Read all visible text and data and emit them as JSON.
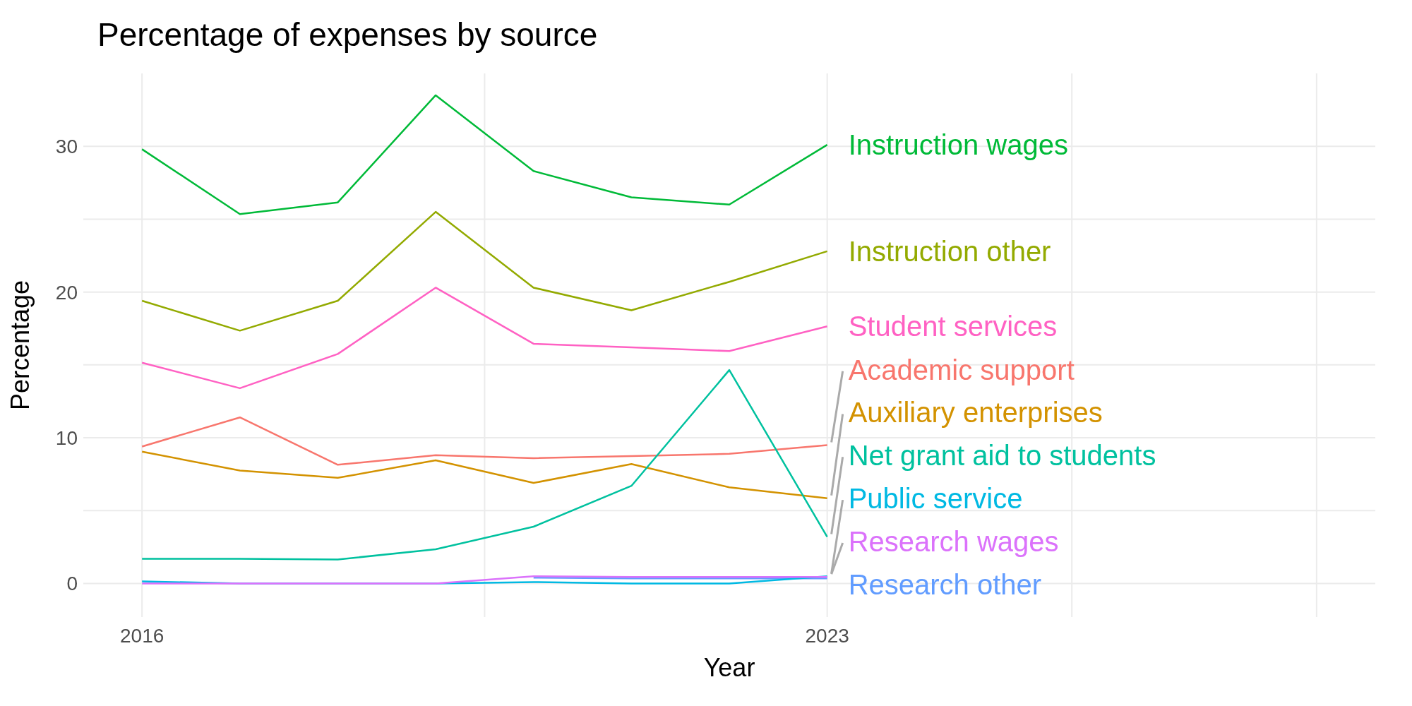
{
  "chart_data": {
    "type": "line",
    "title": "Percentage of expenses by source",
    "xlabel": "Year",
    "ylabel": "Percentage",
    "x": [
      2016,
      2017,
      2018,
      2019,
      2020,
      2021,
      2022,
      2023
    ],
    "xlim": [
      2015.4,
      2028.6
    ],
    "xticks": [
      2016,
      {
        "value": 2019.5,
        "label": null
      },
      2023,
      {
        "value": 2025.5,
        "label": null
      },
      {
        "value": 2028,
        "label": null
      }
    ],
    "ylim": [
      -2.3,
      35
    ],
    "yticks": [
      0,
      {
        "value": 5,
        "label": null
      },
      10,
      {
        "value": 15,
        "label": null
      },
      20,
      {
        "value": 25,
        "label": null
      },
      30
    ],
    "grid": true,
    "series": [
      {
        "name": "Instruction wages",
        "color": "#00ba38",
        "values": [
          29.8,
          25.35,
          26.15,
          33.5,
          28.3,
          26.5,
          26.0,
          30.1
        ]
      },
      {
        "name": "Instruction other",
        "color": "#93aa00",
        "values": [
          19.4,
          17.35,
          19.4,
          25.5,
          20.3,
          18.75,
          20.7,
          22.8
        ]
      },
      {
        "name": "Student services",
        "color": "#ff61c3",
        "values": [
          15.15,
          13.4,
          15.75,
          20.3,
          16.45,
          16.2,
          15.95,
          17.65
        ]
      },
      {
        "name": "Academic support",
        "color": "#f8766d",
        "values": [
          9.4,
          11.4,
          8.15,
          8.8,
          8.6,
          8.75,
          8.9,
          9.5
        ]
      },
      {
        "name": "Auxiliary enterprises",
        "color": "#d39200",
        "values": [
          9.05,
          7.75,
          7.25,
          8.45,
          6.9,
          8.2,
          6.6,
          5.85
        ]
      },
      {
        "name": "Net grant aid to students",
        "color": "#00c19f",
        "values": [
          1.7,
          1.7,
          1.65,
          2.35,
          3.9,
          6.7,
          14.65,
          3.2
        ]
      },
      {
        "name": "Research other",
        "color": "#619cff",
        "values": [
          null,
          null,
          null,
          null,
          0.4,
          0.35,
          0.35,
          0.35
        ]
      },
      {
        "name": "Public service",
        "color": "#00b9e3",
        "values": [
          0.15,
          0.0,
          0.0,
          0.0,
          0.1,
          0.0,
          0.0,
          0.5
        ]
      },
      {
        "name": "Research wages",
        "color": "#db72fb",
        "values": [
          0.0,
          0.0,
          0.0,
          0.0,
          0.5,
          0.45,
          0.45,
          0.45
        ]
      }
    ]
  }
}
